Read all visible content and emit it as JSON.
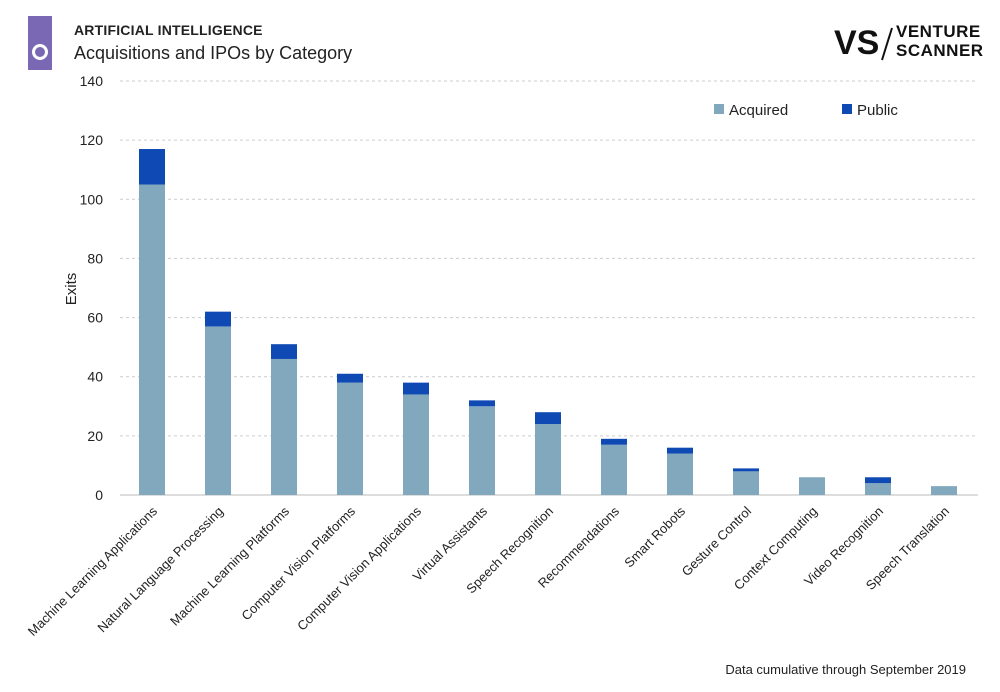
{
  "header": {
    "category": "ARTIFICIAL INTELLIGENCE",
    "title": "Acquisitions and IPOs by Category"
  },
  "logo": {
    "mark": "VS",
    "line1": "VENTURE",
    "line2": "SCANNER"
  },
  "footer": {
    "note": "Data cumulative through September 2019"
  },
  "colors": {
    "accent": "#7a68b4",
    "acquired": "#82a8bd",
    "public": "#0f4ab4",
    "grid": "#cccccc"
  },
  "chart_data": {
    "type": "bar",
    "stacked": true,
    "ylabel": "Exits",
    "xlabel": "",
    "ylim": [
      0,
      140
    ],
    "yticks": [
      0,
      20,
      40,
      60,
      80,
      100,
      120,
      140
    ],
    "grid": true,
    "legend_position": "top-right",
    "categories": [
      "Machine Learning Applications",
      "Natural Language Processing",
      "Machine Learning Platforms",
      "Computer Vision Platforms",
      "Computer Vision Applications",
      "Virtual Assistants",
      "Speech Recognition",
      "Recommendations",
      "Smart Robots",
      "Gesture Control",
      "Context Computing",
      "Video Recognition",
      "Speech Translation"
    ],
    "series": [
      {
        "name": "Acquired",
        "color": "#82a8bd",
        "values": [
          105,
          57,
          46,
          38,
          34,
          30,
          24,
          17,
          14,
          8,
          6,
          4,
          3
        ]
      },
      {
        "name": "Public",
        "color": "#0f4ab4",
        "values": [
          12,
          5,
          5,
          3,
          4,
          2,
          4,
          2,
          2,
          1,
          0,
          2,
          0
        ]
      }
    ]
  }
}
